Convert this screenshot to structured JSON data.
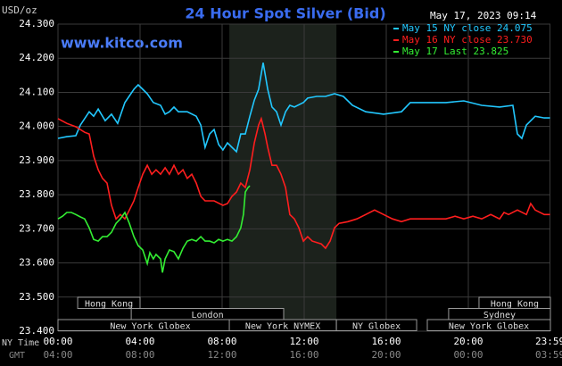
{
  "chart_data": {
    "type": "line",
    "title": "24 Hour Spot Silver (Bid)",
    "subtitle": "www.kitco.com",
    "timestamp": "May 17, 2023 09:14",
    "y_label": "USD/oz",
    "x_label": "NY Time",
    "x2_label": "GMT",
    "grid": true,
    "xlim": [
      0,
      24
    ],
    "ylim": [
      23.4,
      24.3
    ],
    "yticks": [
      {
        "value": 23.4,
        "label": "23.400"
      },
      {
        "value": 23.5,
        "label": "23.500"
      },
      {
        "value": 23.6,
        "label": "23.600"
      },
      {
        "value": 23.7,
        "label": "23.700"
      },
      {
        "value": 23.8,
        "label": "23.800"
      },
      {
        "value": 23.9,
        "label": "23.900"
      },
      {
        "value": 24.0,
        "label": "24.000"
      },
      {
        "value": 24.1,
        "label": "24.100"
      },
      {
        "value": 24.2,
        "label": "24.200"
      },
      {
        "value": 24.3,
        "label": "24.300"
      }
    ],
    "xticks": [
      {
        "value": 0,
        "label": "00:00"
      },
      {
        "value": 4,
        "label": "04:00"
      },
      {
        "value": 8,
        "label": "08:00"
      },
      {
        "value": 12,
        "label": "12:00"
      },
      {
        "value": 16,
        "label": "16:00"
      },
      {
        "value": 20,
        "label": "20:00"
      },
      {
        "value": 23.98,
        "label": "23:59"
      }
    ],
    "x2ticks": [
      {
        "value": 0,
        "label": "04:00"
      },
      {
        "value": 4,
        "label": "08:00"
      },
      {
        "value": 8,
        "label": "12:00"
      },
      {
        "value": 12,
        "label": "16:00"
      },
      {
        "value": 16,
        "label": "20:00"
      },
      {
        "value": 20,
        "label": "00:00"
      },
      {
        "value": 23.98,
        "label": "03:59"
      }
    ],
    "sessions": [
      {
        "label": "Hong Kong",
        "start": 0.96,
        "end": 4
      },
      {
        "label": "Hong Kong",
        "start": 20.52,
        "end": 24
      },
      {
        "label": "London",
        "start": 3.57,
        "end": 11
      },
      {
        "label": "Sydney",
        "start": 19.04,
        "end": 24
      },
      {
        "label": "New York Globex",
        "start": 0,
        "end": 9
      },
      {
        "label": "New York NYMEX",
        "start": 8.35,
        "end": 13.57
      },
      {
        "label": "NY Globex",
        "start": 13.57,
        "end": 17.48
      },
      {
        "label": "New York Globex",
        "start": 18,
        "end": 24
      }
    ],
    "series": [
      {
        "name": "May 15 NY close 24.075",
        "color": "#22c8ff",
        "x": [
          0,
          0.43,
          0.87,
          1.09,
          1.52,
          1.74,
          1.96,
          2.3,
          2.61,
          2.91,
          3.26,
          3.7,
          3.91,
          4.13,
          4.35,
          4.65,
          5,
          5.22,
          5.43,
          5.65,
          5.87,
          6.3,
          6.74,
          6.96,
          7.17,
          7.39,
          7.61,
          7.83,
          8.04,
          8.26,
          8.48,
          8.7,
          8.91,
          9.13,
          9.35,
          9.57,
          9.78,
          10,
          10.22,
          10.43,
          10.65,
          10.87,
          11.09,
          11.3,
          11.52,
          11.96,
          12.17,
          12.61,
          13.04,
          13.48,
          13.91,
          14.35,
          15,
          15.87,
          16.74,
          17.17,
          17.61,
          18.04,
          18.48,
          18.91,
          19.78,
          20.65,
          21.52,
          22.17,
          22.39,
          22.61,
          22.83,
          23.26,
          23.7,
          23.98
        ],
        "values": [
          23.965,
          23.97,
          23.973,
          24.004,
          24.043,
          24.03,
          24.051,
          24.017,
          24.036,
          24.009,
          24.07,
          24.109,
          24.122,
          24.109,
          24.096,
          24.07,
          24.062,
          24.036,
          24.043,
          24.057,
          24.043,
          24.043,
          24.03,
          24.004,
          23.939,
          23.978,
          23.991,
          23.947,
          23.931,
          23.952,
          23.939,
          23.926,
          23.978,
          23.978,
          24.03,
          24.077,
          24.109,
          24.187,
          24.109,
          24.057,
          24.043,
          24.004,
          24.043,
          24.062,
          24.057,
          24.07,
          24.083,
          24.088,
          24.088,
          24.096,
          24.088,
          24.062,
          24.043,
          24.036,
          24.043,
          24.07,
          24.07,
          24.07,
          24.07,
          24.07,
          24.075,
          24.062,
          24.057,
          24.062,
          23.978,
          23.965,
          24.004,
          24.03,
          24.025,
          24.025
        ]
      },
      {
        "name": "May 16 NY close 23.730",
        "color": "#ff1e1e",
        "x": [
          0,
          0.43,
          0.87,
          1.3,
          1.52,
          1.74,
          1.96,
          2.17,
          2.39,
          2.61,
          2.83,
          3.04,
          3.26,
          3.48,
          3.7,
          3.91,
          4.13,
          4.35,
          4.57,
          4.78,
          5,
          5.22,
          5.43,
          5.65,
          5.87,
          6.09,
          6.3,
          6.52,
          6.74,
          6.96,
          7.17,
          7.61,
          8.04,
          8.26,
          8.48,
          8.7,
          8.91,
          9.13,
          9.35,
          9.57,
          9.78,
          9.91,
          10.09,
          10.22,
          10.43,
          10.65,
          10.87,
          11.09,
          11.3,
          11.52,
          11.74,
          11.96,
          12.17,
          12.39,
          12.83,
          13.04,
          13.26,
          13.48,
          13.7,
          14.13,
          14.57,
          15,
          15.43,
          15.87,
          16.3,
          16.74,
          17.17,
          17.61,
          18.48,
          18.91,
          19.35,
          19.78,
          20.22,
          20.65,
          21.09,
          21.52,
          21.74,
          21.96,
          22.39,
          22.83,
          23.04,
          23.26,
          23.7,
          23.98
        ],
        "values": [
          24.023,
          24.009,
          23.999,
          23.983,
          23.978,
          23.913,
          23.873,
          23.848,
          23.834,
          23.769,
          23.729,
          23.742,
          23.729,
          23.755,
          23.782,
          23.821,
          23.86,
          23.886,
          23.86,
          23.873,
          23.86,
          23.879,
          23.86,
          23.886,
          23.86,
          23.873,
          23.848,
          23.86,
          23.834,
          23.795,
          23.782,
          23.782,
          23.769,
          23.774,
          23.795,
          23.808,
          23.834,
          23.821,
          23.873,
          23.952,
          24.004,
          24.023,
          23.978,
          23.939,
          23.886,
          23.886,
          23.86,
          23.821,
          23.742,
          23.729,
          23.703,
          23.664,
          23.677,
          23.664,
          23.656,
          23.643,
          23.664,
          23.703,
          23.716,
          23.721,
          23.729,
          23.742,
          23.755,
          23.742,
          23.729,
          23.721,
          23.729,
          23.729,
          23.729,
          23.729,
          23.737,
          23.729,
          23.737,
          23.729,
          23.742,
          23.729,
          23.748,
          23.742,
          23.755,
          23.742,
          23.774,
          23.755,
          23.742,
          23.742
        ]
      },
      {
        "name": "May 17 Last 23.825",
        "color": "#33ee33",
        "x": [
          0,
          0.22,
          0.43,
          0.65,
          0.87,
          1.09,
          1.3,
          1.52,
          1.74,
          1.96,
          2.17,
          2.39,
          2.61,
          2.83,
          3.04,
          3.26,
          3.48,
          3.7,
          3.91,
          4.13,
          4.35,
          4.48,
          4.65,
          4.78,
          5,
          5.09,
          5.22,
          5.43,
          5.65,
          5.87,
          6.09,
          6.3,
          6.52,
          6.74,
          6.96,
          7.17,
          7.39,
          7.61,
          7.83,
          8.04,
          8.26,
          8.48,
          8.7,
          8.91,
          9.04,
          9.13,
          9.26,
          9.35
        ],
        "values": [
          23.729,
          23.737,
          23.748,
          23.748,
          23.742,
          23.735,
          23.729,
          23.703,
          23.669,
          23.664,
          23.677,
          23.677,
          23.69,
          23.716,
          23.729,
          23.748,
          23.716,
          23.677,
          23.651,
          23.638,
          23.598,
          23.63,
          23.612,
          23.625,
          23.612,
          23.572,
          23.612,
          23.638,
          23.633,
          23.612,
          23.643,
          23.664,
          23.669,
          23.664,
          23.677,
          23.664,
          23.664,
          23.659,
          23.669,
          23.664,
          23.669,
          23.664,
          23.677,
          23.703,
          23.742,
          23.808,
          23.821,
          23.826
        ]
      }
    ]
  }
}
